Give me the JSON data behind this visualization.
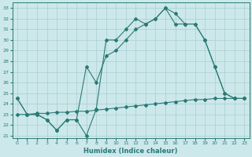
{
  "xlabel": "Humidex (Indice chaleur)",
  "bg_color": "#cce8ea",
  "line_color": "#2a7a76",
  "grid_color": "#aacdd2",
  "xlim": [
    -0.5,
    23.5
  ],
  "ylim": [
    20.8,
    33.5
  ],
  "yticks": [
    21,
    22,
    23,
    24,
    25,
    26,
    27,
    28,
    29,
    30,
    31,
    32,
    33
  ],
  "xticks": [
    0,
    1,
    2,
    3,
    4,
    5,
    6,
    7,
    8,
    9,
    10,
    11,
    12,
    13,
    14,
    15,
    16,
    17,
    18,
    19,
    20,
    21,
    22,
    23
  ],
  "line1_y": [
    24.5,
    23.0,
    23.0,
    22.5,
    21.5,
    22.5,
    22.5,
    21.0,
    23.5,
    30.0,
    30.0,
    31.0,
    32.0,
    31.5,
    32.0,
    33.0,
    32.5,
    31.5,
    31.5,
    30.0,
    27.5,
    25.0,
    24.5,
    24.5
  ],
  "line2_y": [
    24.5,
    23.0,
    23.0,
    22.5,
    21.5,
    22.5,
    22.5,
    27.5,
    26.0,
    28.5,
    29.0,
    30.0,
    31.0,
    31.5,
    32.0,
    33.0,
    31.5,
    31.5,
    31.5,
    30.0,
    27.5,
    25.0,
    24.5,
    24.5
  ],
  "line3_y": [
    23.0,
    23.0,
    23.1,
    23.1,
    23.2,
    23.2,
    23.3,
    23.3,
    23.4,
    23.5,
    23.6,
    23.7,
    23.8,
    23.9,
    24.0,
    24.1,
    24.2,
    24.3,
    24.4,
    24.4,
    24.5,
    24.5,
    24.5,
    24.5
  ]
}
